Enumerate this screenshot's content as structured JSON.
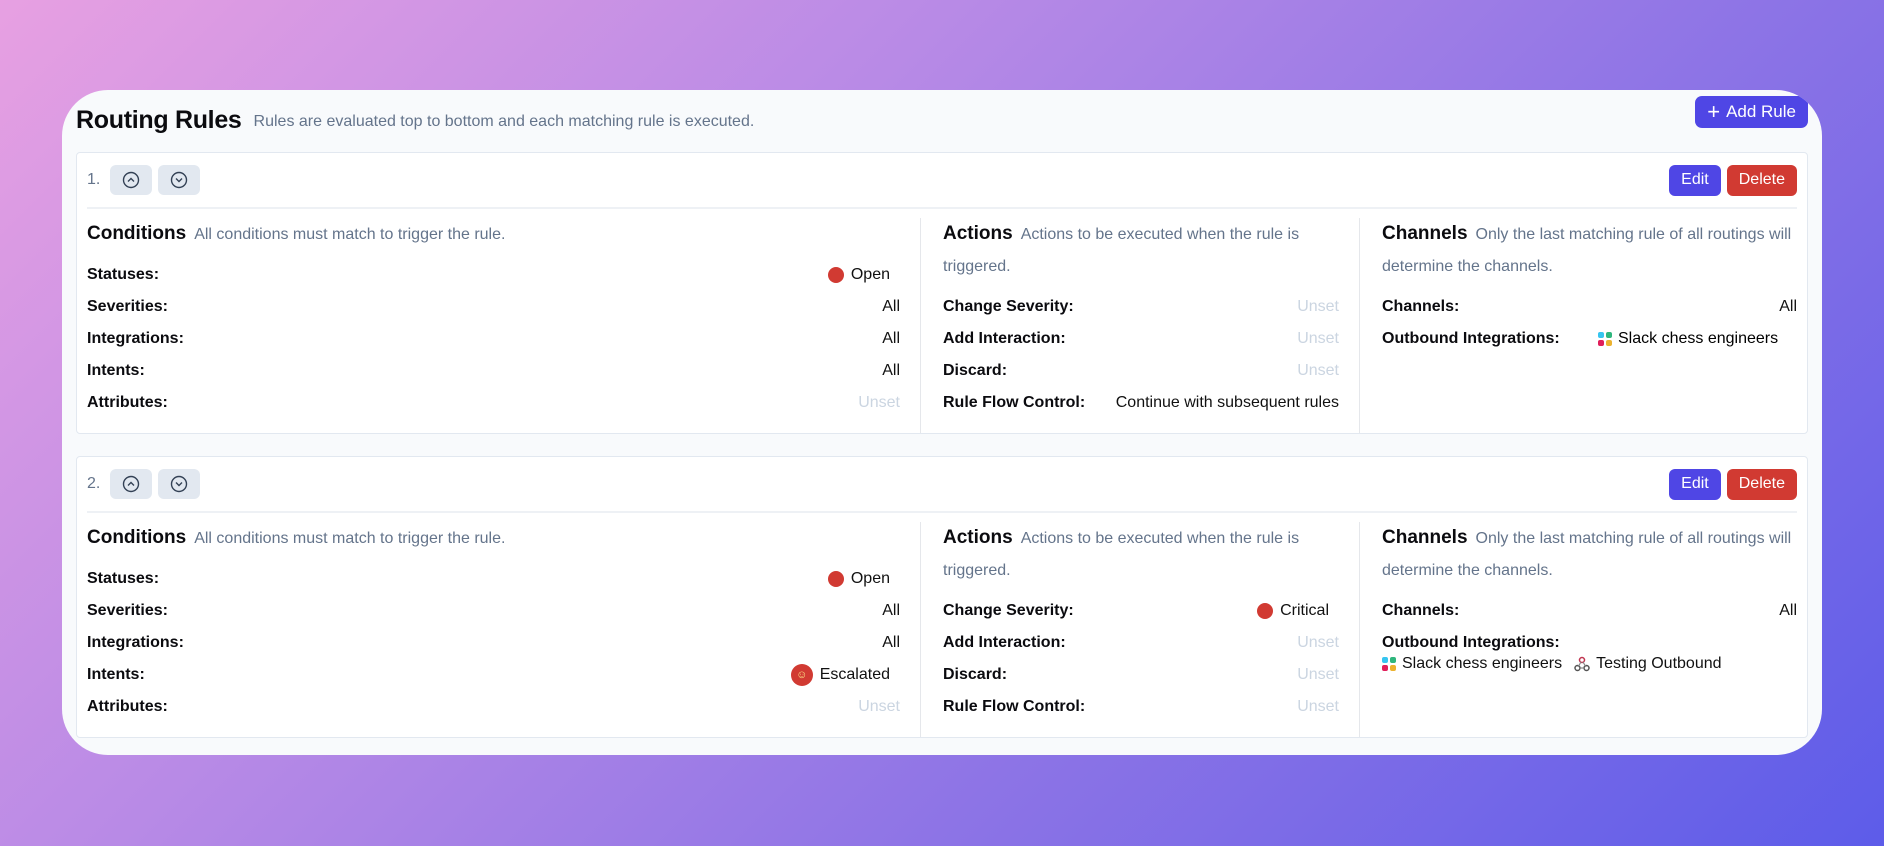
{
  "header": {
    "title": "Routing Rules",
    "subtitle": "Rules are evaluated top to bottom and each matching rule is executed.",
    "add_rule": "Add Rule"
  },
  "labels": {
    "edit": "Edit",
    "delete": "Delete",
    "conditions": "Conditions",
    "conditions_desc": "All conditions must match to trigger the rule.",
    "actions": "Actions",
    "actions_desc": "Actions to be executed when the rule is triggered.",
    "channels": "Channels",
    "channels_desc": "Only the last matching rule of all routings will determine the channels.",
    "statuses": "Statuses:",
    "severities": "Severities:",
    "integrations": "Integrations:",
    "intents": "Intents:",
    "attributes": "Attributes:",
    "change_severity": "Change Severity:",
    "add_interaction": "Add Interaction:",
    "discard": "Discard:",
    "rule_flow": "Rule Flow Control:",
    "channels_lbl": "Channels:",
    "outbound": "Outbound Integrations:"
  },
  "colors": {
    "accent": "#4f46e5",
    "danger": "#d13a32",
    "status_dot": "#d13a32"
  },
  "rules": [
    {
      "number": "1.",
      "statuses": "Open",
      "severities": "All",
      "integrations": "All",
      "intents": "All",
      "attributes": "Unset",
      "change_severity": "Unset",
      "add_interaction": "Unset",
      "discard": "Unset",
      "rule_flow": "Continue with subsequent rules",
      "channels": "All",
      "outbound": [
        "Slack chess engineers"
      ]
    },
    {
      "number": "2.",
      "statuses": "Open",
      "severities": "All",
      "integrations": "All",
      "intents": "Escalated",
      "attributes": "Unset",
      "change_severity": "Critical",
      "add_interaction": "Unset",
      "discard": "Unset",
      "rule_flow": "Unset",
      "channels": "All",
      "outbound": [
        "Slack chess engineers",
        "Testing Outbound"
      ]
    }
  ]
}
